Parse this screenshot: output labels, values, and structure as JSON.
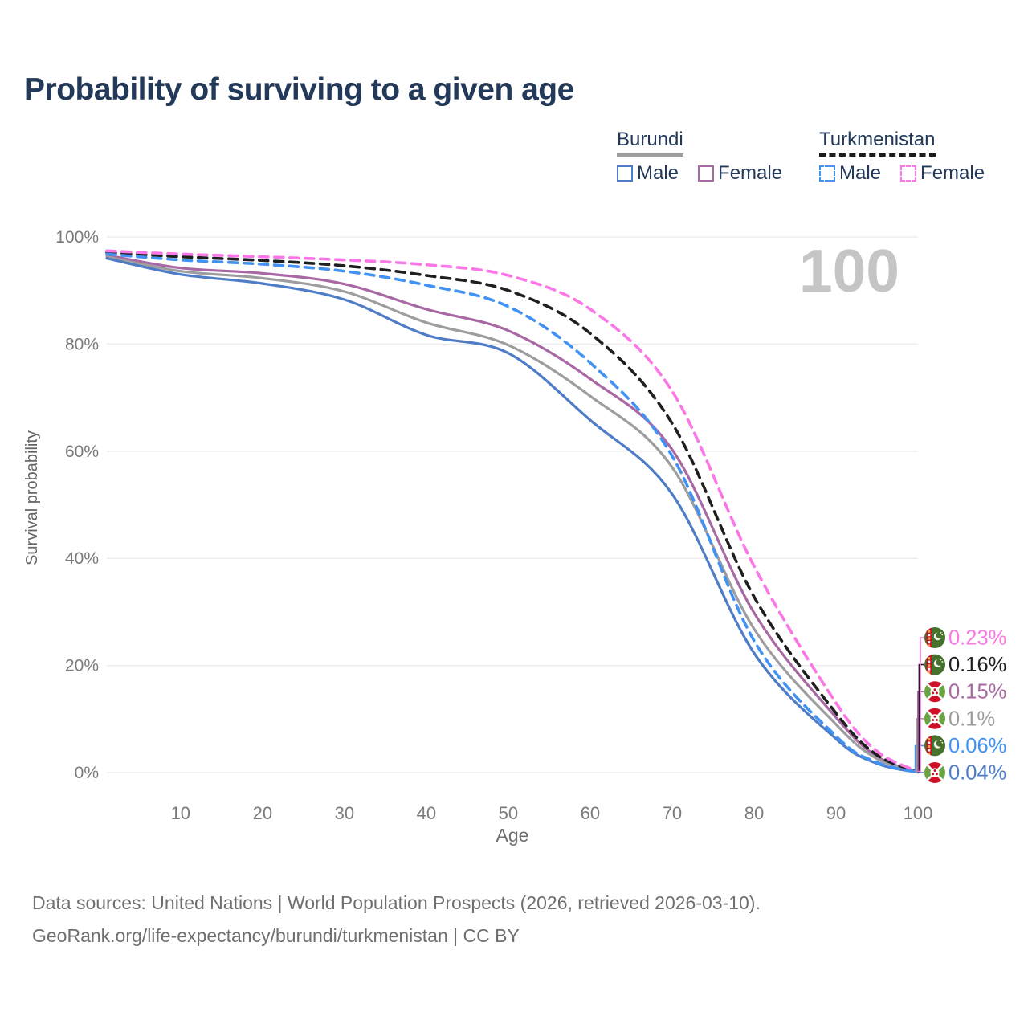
{
  "title": "Probability of surviving to a given age",
  "watermark": "100",
  "legend": {
    "groups": [
      {
        "name": "Burundi",
        "underline_style": "solid",
        "underline_color": "#9e9e9e",
        "items": [
          {
            "label": "Male",
            "color": "#4e7cc6",
            "dashed": false
          },
          {
            "label": "Female",
            "color": "#a868a3",
            "dashed": false
          }
        ]
      },
      {
        "name": "Turkmenistan",
        "underline_style": "dashed",
        "underline_color": "#1b1b1b",
        "items": [
          {
            "label": "Male",
            "color": "#4292f4",
            "dashed": true
          },
          {
            "label": "Female",
            "color": "#fb76e6",
            "dashed": true
          }
        ]
      }
    ]
  },
  "chart_data": {
    "type": "line",
    "title": "Probability of surviving to a given age",
    "xlabel": "Age",
    "ylabel": "Survival probability",
    "xlim": [
      1,
      100
    ],
    "ylim": [
      0,
      100
    ],
    "grid": true,
    "legend_position": "top-right",
    "x": [
      1,
      10,
      20,
      30,
      40,
      50,
      60,
      70,
      80,
      90,
      95,
      100
    ],
    "x_ticks": [
      10,
      20,
      30,
      40,
      50,
      60,
      70,
      80,
      90,
      100
    ],
    "y_ticks": [
      {
        "value": 0,
        "label": "0%"
      },
      {
        "value": 20,
        "label": "20%"
      },
      {
        "value": 40,
        "label": "40%"
      },
      {
        "value": 60,
        "label": "60%"
      },
      {
        "value": 80,
        "label": "80%"
      },
      {
        "value": 100,
        "label": "100%"
      }
    ],
    "series": [
      {
        "id": "burundi-female",
        "name": "Burundi Female",
        "country": "burundi",
        "sex": "Female",
        "color": "#a868a3",
        "dash": false,
        "values": [
          96.6,
          94.2,
          93.2,
          91.2,
          86.5,
          82.5,
          73.5,
          60.3,
          29.8,
          10.3,
          3.0,
          0.15
        ],
        "end_label": "0.15%"
      },
      {
        "id": "burundi-all",
        "name": "Burundi",
        "country": "burundi",
        "sex": "Both",
        "color": "#9d9da0",
        "dash": false,
        "values": [
          96.3,
          93.6,
          92.3,
          89.8,
          84.0,
          79.8,
          70.3,
          57.0,
          26.8,
          9.0,
          2.6,
          0.1
        ],
        "end_label": "0.1%"
      },
      {
        "id": "burundi-male",
        "name": "Burundi Male",
        "country": "burundi",
        "sex": "Male",
        "color": "#4e7cc6",
        "dash": false,
        "values": [
          96.0,
          93.0,
          91.3,
          88.3,
          81.7,
          78.3,
          65.8,
          52.0,
          22.3,
          6.3,
          1.7,
          0.04
        ],
        "end_label": "0.04%"
      },
      {
        "id": "turkmenistan-all",
        "name": "Turkmenistan",
        "country": "turkmenistan",
        "sex": "Both",
        "color": "#1f1f1f",
        "dash": true,
        "values": [
          97.1,
          96.3,
          95.6,
          94.6,
          92.8,
          90.0,
          82.0,
          65.2,
          32.8,
          11.1,
          3.3,
          0.16
        ],
        "end_label": "0.16%"
      },
      {
        "id": "turkmenistan-male",
        "name": "Turkmenistan Male",
        "country": "turkmenistan",
        "sex": "Male",
        "color": "#4292f4",
        "dash": true,
        "values": [
          96.8,
          95.7,
          94.9,
          93.6,
          91.0,
          87.0,
          76.5,
          59.1,
          24.6,
          6.8,
          1.9,
          0.06
        ],
        "end_label": "0.06%"
      },
      {
        "id": "turkmenistan-female",
        "name": "Turkmenistan Female",
        "country": "turkmenistan",
        "sex": "Female",
        "color": "#fb76e6",
        "dash": true,
        "values": [
          97.4,
          96.8,
          96.3,
          95.7,
          94.8,
          92.8,
          86.5,
          71.2,
          38.5,
          13.0,
          4.0,
          0.23
        ],
        "end_label": "0.23%"
      }
    ]
  },
  "footer": {
    "line1": "Data sources: United Nations | World Population Prospects (2026, retrieved 2026-03-10).",
    "line2": "GeoRank.org/life-expectancy/burundi/turkmenistan | CC BY"
  },
  "colors": {
    "title_text": "#22395a",
    "axis_text": "#7a7a7a",
    "grid_line": "#ebebeb",
    "watermark": "#c5c5c5",
    "footer_text": "#6f6f6f"
  }
}
